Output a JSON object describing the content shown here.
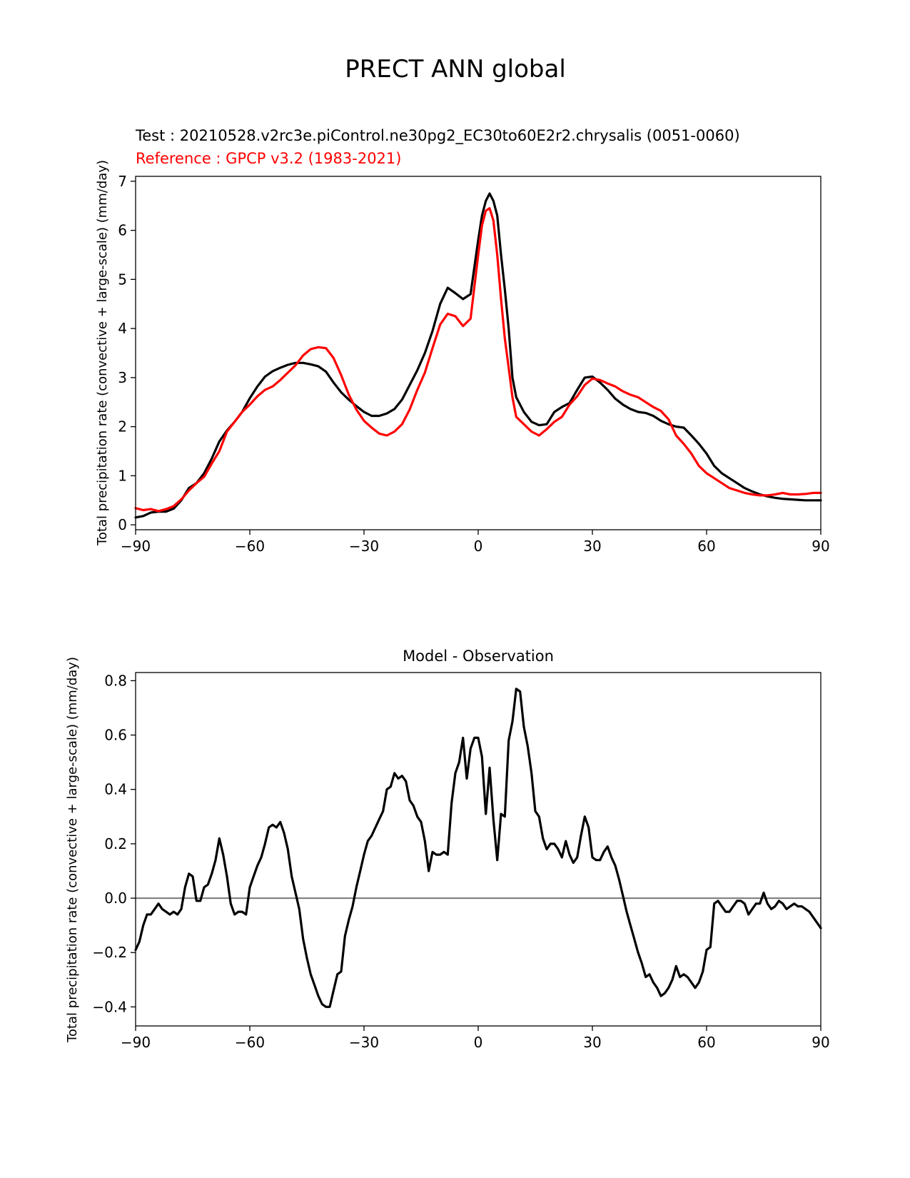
{
  "figure_title": "PRECT ANN global",
  "colors": {
    "test": "#000000",
    "reference": "#ff0000",
    "zero_line": "#808080"
  },
  "chart_data": [
    {
      "type": "line",
      "title_test": "Test : 20210528.v2rc3e.piControl.ne30pg2_EC30to60E2r2.chrysalis (0051-0060)",
      "title_reference": "Reference : GPCP v3.2 (1983-2021)",
      "ylabel": "Total precipitation rate (convective + large-scale) (mm/day)",
      "xlim": [
        -90,
        90
      ],
      "ylim": [
        -0.1,
        7.1
      ],
      "xticks": [
        -90,
        -60,
        -30,
        0,
        30,
        60,
        90
      ],
      "xtick_labels": [
        "−90",
        "−60",
        "−30",
        "0",
        "30",
        "60",
        "90"
      ],
      "yticks": [
        0,
        1,
        2,
        3,
        4,
        5,
        6,
        7
      ],
      "ytick_labels": [
        "0",
        "1",
        "2",
        "3",
        "4",
        "5",
        "6",
        "7"
      ],
      "series": [
        {
          "name": "Test",
          "color": "#000000",
          "x": [
            -90,
            -88,
            -86,
            -84,
            -82,
            -80,
            -78,
            -76,
            -74,
            -72,
            -70,
            -68,
            -66,
            -64,
            -62,
            -60,
            -58,
            -56,
            -54,
            -52,
            -50,
            -48,
            -46,
            -44,
            -42,
            -40,
            -38,
            -36,
            -34,
            -32,
            -30,
            -28,
            -26,
            -24,
            -22,
            -20,
            -18,
            -16,
            -14,
            -12,
            -10,
            -8,
            -6,
            -4,
            -2,
            0,
            1,
            2,
            3,
            4,
            5,
            6,
            7,
            8,
            9,
            10,
            12,
            14,
            16,
            18,
            20,
            22,
            24,
            26,
            28,
            30,
            32,
            34,
            36,
            38,
            40,
            42,
            44,
            46,
            48,
            50,
            52,
            54,
            56,
            58,
            60,
            62,
            64,
            66,
            68,
            70,
            72,
            74,
            76,
            78,
            80,
            82,
            84,
            86,
            88,
            90
          ],
          "y": [
            0.15,
            0.18,
            0.25,
            0.27,
            0.27,
            0.33,
            0.5,
            0.75,
            0.85,
            1.05,
            1.35,
            1.7,
            1.92,
            2.1,
            2.3,
            2.58,
            2.82,
            3.02,
            3.13,
            3.2,
            3.26,
            3.3,
            3.3,
            3.27,
            3.23,
            3.12,
            2.9,
            2.7,
            2.55,
            2.42,
            2.3,
            2.22,
            2.22,
            2.27,
            2.36,
            2.55,
            2.85,
            3.15,
            3.5,
            3.95,
            4.5,
            4.83,
            4.72,
            4.6,
            4.7,
            5.8,
            6.3,
            6.6,
            6.75,
            6.6,
            6.3,
            5.5,
            4.8,
            4.0,
            3.0,
            2.6,
            2.3,
            2.1,
            2.03,
            2.05,
            2.3,
            2.4,
            2.48,
            2.75,
            3.0,
            3.02,
            2.9,
            2.75,
            2.57,
            2.45,
            2.36,
            2.3,
            2.28,
            2.22,
            2.12,
            2.05,
            2.0,
            1.98,
            1.82,
            1.65,
            1.45,
            1.2,
            1.05,
            0.95,
            0.85,
            0.75,
            0.68,
            0.62,
            0.58,
            0.55,
            0.53,
            0.52,
            0.51,
            0.5,
            0.5,
            0.5
          ]
        },
        {
          "name": "Reference",
          "color": "#ff0000",
          "x": [
            -90,
            -88,
            -86,
            -84,
            -82,
            -80,
            -78,
            -76,
            -74,
            -72,
            -70,
            -68,
            -66,
            -64,
            -62,
            -60,
            -58,
            -56,
            -54,
            -52,
            -50,
            -48,
            -46,
            -44,
            -42,
            -40,
            -38,
            -36,
            -34,
            -32,
            -30,
            -28,
            -26,
            -24,
            -22,
            -20,
            -18,
            -16,
            -14,
            -12,
            -10,
            -8,
            -6,
            -4,
            -2,
            0,
            1,
            2,
            3,
            4,
            5,
            6,
            7,
            8,
            9,
            10,
            12,
            14,
            16,
            18,
            20,
            22,
            24,
            26,
            28,
            30,
            32,
            34,
            36,
            38,
            40,
            42,
            44,
            46,
            48,
            50,
            52,
            54,
            56,
            58,
            60,
            62,
            64,
            66,
            68,
            70,
            72,
            74,
            76,
            78,
            80,
            82,
            84,
            86,
            88,
            90
          ],
          "y": [
            0.34,
            0.3,
            0.32,
            0.28,
            0.32,
            0.38,
            0.52,
            0.7,
            0.85,
            0.98,
            1.25,
            1.5,
            1.9,
            2.1,
            2.3,
            2.45,
            2.62,
            2.75,
            2.82,
            2.95,
            3.1,
            3.25,
            3.45,
            3.58,
            3.62,
            3.6,
            3.4,
            3.05,
            2.65,
            2.35,
            2.12,
            1.98,
            1.86,
            1.82,
            1.9,
            2.05,
            2.35,
            2.75,
            3.1,
            3.6,
            4.08,
            4.3,
            4.25,
            4.05,
            4.2,
            5.5,
            6.1,
            6.4,
            6.45,
            6.2,
            5.5,
            4.6,
            3.8,
            3.2,
            2.6,
            2.2,
            2.05,
            1.9,
            1.82,
            1.95,
            2.1,
            2.2,
            2.45,
            2.62,
            2.85,
            2.98,
            2.95,
            2.88,
            2.82,
            2.72,
            2.65,
            2.6,
            2.5,
            2.4,
            2.32,
            2.15,
            1.82,
            1.65,
            1.45,
            1.2,
            1.05,
            0.95,
            0.85,
            0.75,
            0.7,
            0.65,
            0.62,
            0.6,
            0.6,
            0.62,
            0.65,
            0.62,
            0.62,
            0.63,
            0.65,
            0.65
          ]
        }
      ]
    },
    {
      "type": "line",
      "title": "Model - Observation",
      "ylabel": "Total precipitation rate (convective + large-scale) (mm/day)",
      "xlim": [
        -90,
        90
      ],
      "ylim": [
        -0.47,
        0.83
      ],
      "xticks": [
        -90,
        -60,
        -30,
        0,
        30,
        60,
        90
      ],
      "xtick_labels": [
        "−90",
        "−60",
        "−30",
        "0",
        "30",
        "60",
        "90"
      ],
      "yticks": [
        -0.4,
        -0.2,
        0.0,
        0.2,
        0.4,
        0.6,
        0.8
      ],
      "ytick_labels": [
        "−0.4",
        "−0.2",
        "0.0",
        "0.2",
        "0.4",
        "0.6",
        "0.8"
      ],
      "zero_line": 0,
      "series": [
        {
          "name": "Model - Observation",
          "color": "#000000",
          "x": [
            -90,
            -89,
            -88,
            -87,
            -86,
            -85,
            -84,
            -83,
            -82,
            -81,
            -80,
            -79,
            -78,
            -77,
            -76,
            -75,
            -74,
            -73,
            -72,
            -71,
            -70,
            -69,
            -68,
            -67,
            -66,
            -65,
            -64,
            -63,
            -62,
            -61,
            -60,
            -59,
            -58,
            -57,
            -56,
            -55,
            -54,
            -53,
            -52,
            -51,
            -50,
            -49,
            -48,
            -47,
            -46,
            -45,
            -44,
            -43,
            -42,
            -41,
            -40,
            -39,
            -38,
            -37,
            -36,
            -35,
            -34,
            -33,
            -32,
            -31,
            -30,
            -29,
            -28,
            -27,
            -26,
            -25,
            -24,
            -23,
            -22,
            -21,
            -20,
            -19,
            -18,
            -17,
            -16,
            -15,
            -14,
            -13,
            -12,
            -11,
            -10,
            -9,
            -8,
            -7,
            -6,
            -5,
            -4,
            -3,
            -2,
            -1,
            0,
            1,
            2,
            3,
            4,
            5,
            6,
            7,
            8,
            9,
            10,
            11,
            12,
            13,
            14,
            15,
            16,
            17,
            18,
            19,
            20,
            21,
            22,
            23,
            24,
            25,
            26,
            27,
            28,
            29,
            30,
            31,
            32,
            33,
            34,
            35,
            36,
            37,
            38,
            39,
            40,
            41,
            42,
            43,
            44,
            45,
            46,
            47,
            48,
            49,
            50,
            51,
            52,
            53,
            54,
            55,
            56,
            57,
            58,
            59,
            60,
            61,
            62,
            63,
            64,
            65,
            66,
            67,
            68,
            69,
            70,
            71,
            72,
            73,
            74,
            75,
            76,
            77,
            78,
            79,
            80,
            81,
            82,
            83,
            84,
            85,
            86,
            87,
            88,
            89,
            90
          ],
          "y": [
            -0.19,
            -0.16,
            -0.1,
            -0.06,
            -0.06,
            -0.04,
            -0.02,
            -0.04,
            -0.05,
            -0.06,
            -0.05,
            -0.06,
            -0.04,
            0.04,
            0.09,
            0.08,
            -0.01,
            -0.01,
            0.04,
            0.05,
            0.09,
            0.14,
            0.22,
            0.16,
            0.08,
            -0.02,
            -0.06,
            -0.05,
            -0.05,
            -0.06,
            0.04,
            0.08,
            0.12,
            0.15,
            0.2,
            0.26,
            0.27,
            0.26,
            0.28,
            0.24,
            0.18,
            0.08,
            0.02,
            -0.04,
            -0.15,
            -0.22,
            -0.28,
            -0.32,
            -0.36,
            -0.39,
            -0.4,
            -0.4,
            -0.34,
            -0.28,
            -0.27,
            -0.14,
            -0.08,
            -0.03,
            0.04,
            0.1,
            0.16,
            0.21,
            0.23,
            0.26,
            0.29,
            0.32,
            0.4,
            0.41,
            0.46,
            0.44,
            0.45,
            0.43,
            0.36,
            0.34,
            0.3,
            0.28,
            0.21,
            0.1,
            0.17,
            0.16,
            0.16,
            0.17,
            0.16,
            0.35,
            0.46,
            0.5,
            0.59,
            0.44,
            0.55,
            0.59,
            0.59,
            0.52,
            0.31,
            0.48,
            0.29,
            0.14,
            0.31,
            0.3,
            0.58,
            0.65,
            0.77,
            0.76,
            0.63,
            0.56,
            0.46,
            0.32,
            0.3,
            0.22,
            0.18,
            0.2,
            0.2,
            0.18,
            0.15,
            0.21,
            0.16,
            0.13,
            0.15,
            0.23,
            0.3,
            0.26,
            0.15,
            0.14,
            0.14,
            0.17,
            0.19,
            0.15,
            0.12,
            0.07,
            0.01,
            -0.05,
            -0.1,
            -0.15,
            -0.2,
            -0.24,
            -0.29,
            -0.28,
            -0.31,
            -0.33,
            -0.36,
            -0.35,
            -0.33,
            -0.3,
            -0.25,
            -0.29,
            -0.28,
            -0.29,
            -0.31,
            -0.33,
            -0.31,
            -0.27,
            -0.19,
            -0.18,
            -0.02,
            -0.01,
            -0.03,
            -0.05,
            -0.05,
            -0.03,
            -0.01,
            -0.01,
            -0.02,
            -0.06,
            -0.04,
            -0.02,
            -0.02,
            0.02,
            -0.02,
            -0.04,
            -0.03,
            -0.01,
            -0.02,
            -0.04,
            -0.03,
            -0.02,
            -0.03,
            -0.03,
            -0.04,
            -0.05,
            -0.07,
            -0.09,
            -0.11
          ]
        }
      ]
    }
  ]
}
